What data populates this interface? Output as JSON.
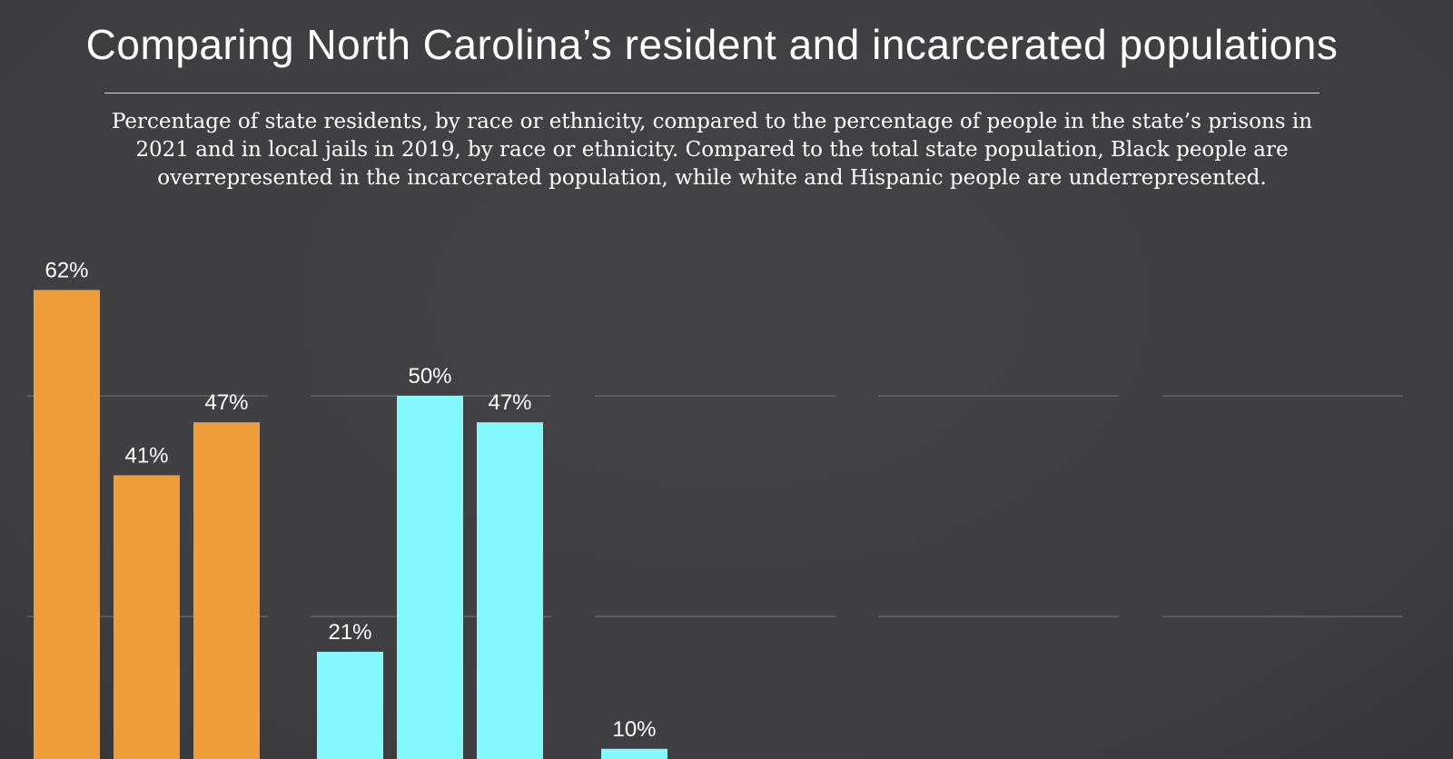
{
  "title": "Comparing North Carolina’s resident and incarcerated populations",
  "subtitle": "Percentage of state residents, by race or ethnicity, compared to the percentage of people in the state’s prisons in 2021 and in local jails in 2019, by race or ethnicity. Compared to the total state population, Black people are overrepresented in the incarcerated population, while white and Hispanic people are underrepresented.",
  "chart_data": {
    "type": "bar",
    "grid": true,
    "gridlines": [
      25,
      50
    ],
    "ylim": [
      0,
      65
    ],
    "panels": [
      {
        "color": "#EF9D3A",
        "values": [
          62,
          41,
          47
        ],
        "labels": [
          "62%",
          "41%",
          "47%"
        ]
      },
      {
        "color": "#84F9FD",
        "values": [
          21,
          50,
          47
        ],
        "labels": [
          "21%",
          "50%",
          "47%"
        ]
      },
      {
        "color": "#84F9FD",
        "values": [
          10
        ],
        "labels": [
          "10%"
        ]
      },
      {
        "color": "#84F9FD",
        "values": [],
        "labels": []
      },
      {
        "color": "#84F9FD",
        "values": [],
        "labels": []
      }
    ]
  }
}
